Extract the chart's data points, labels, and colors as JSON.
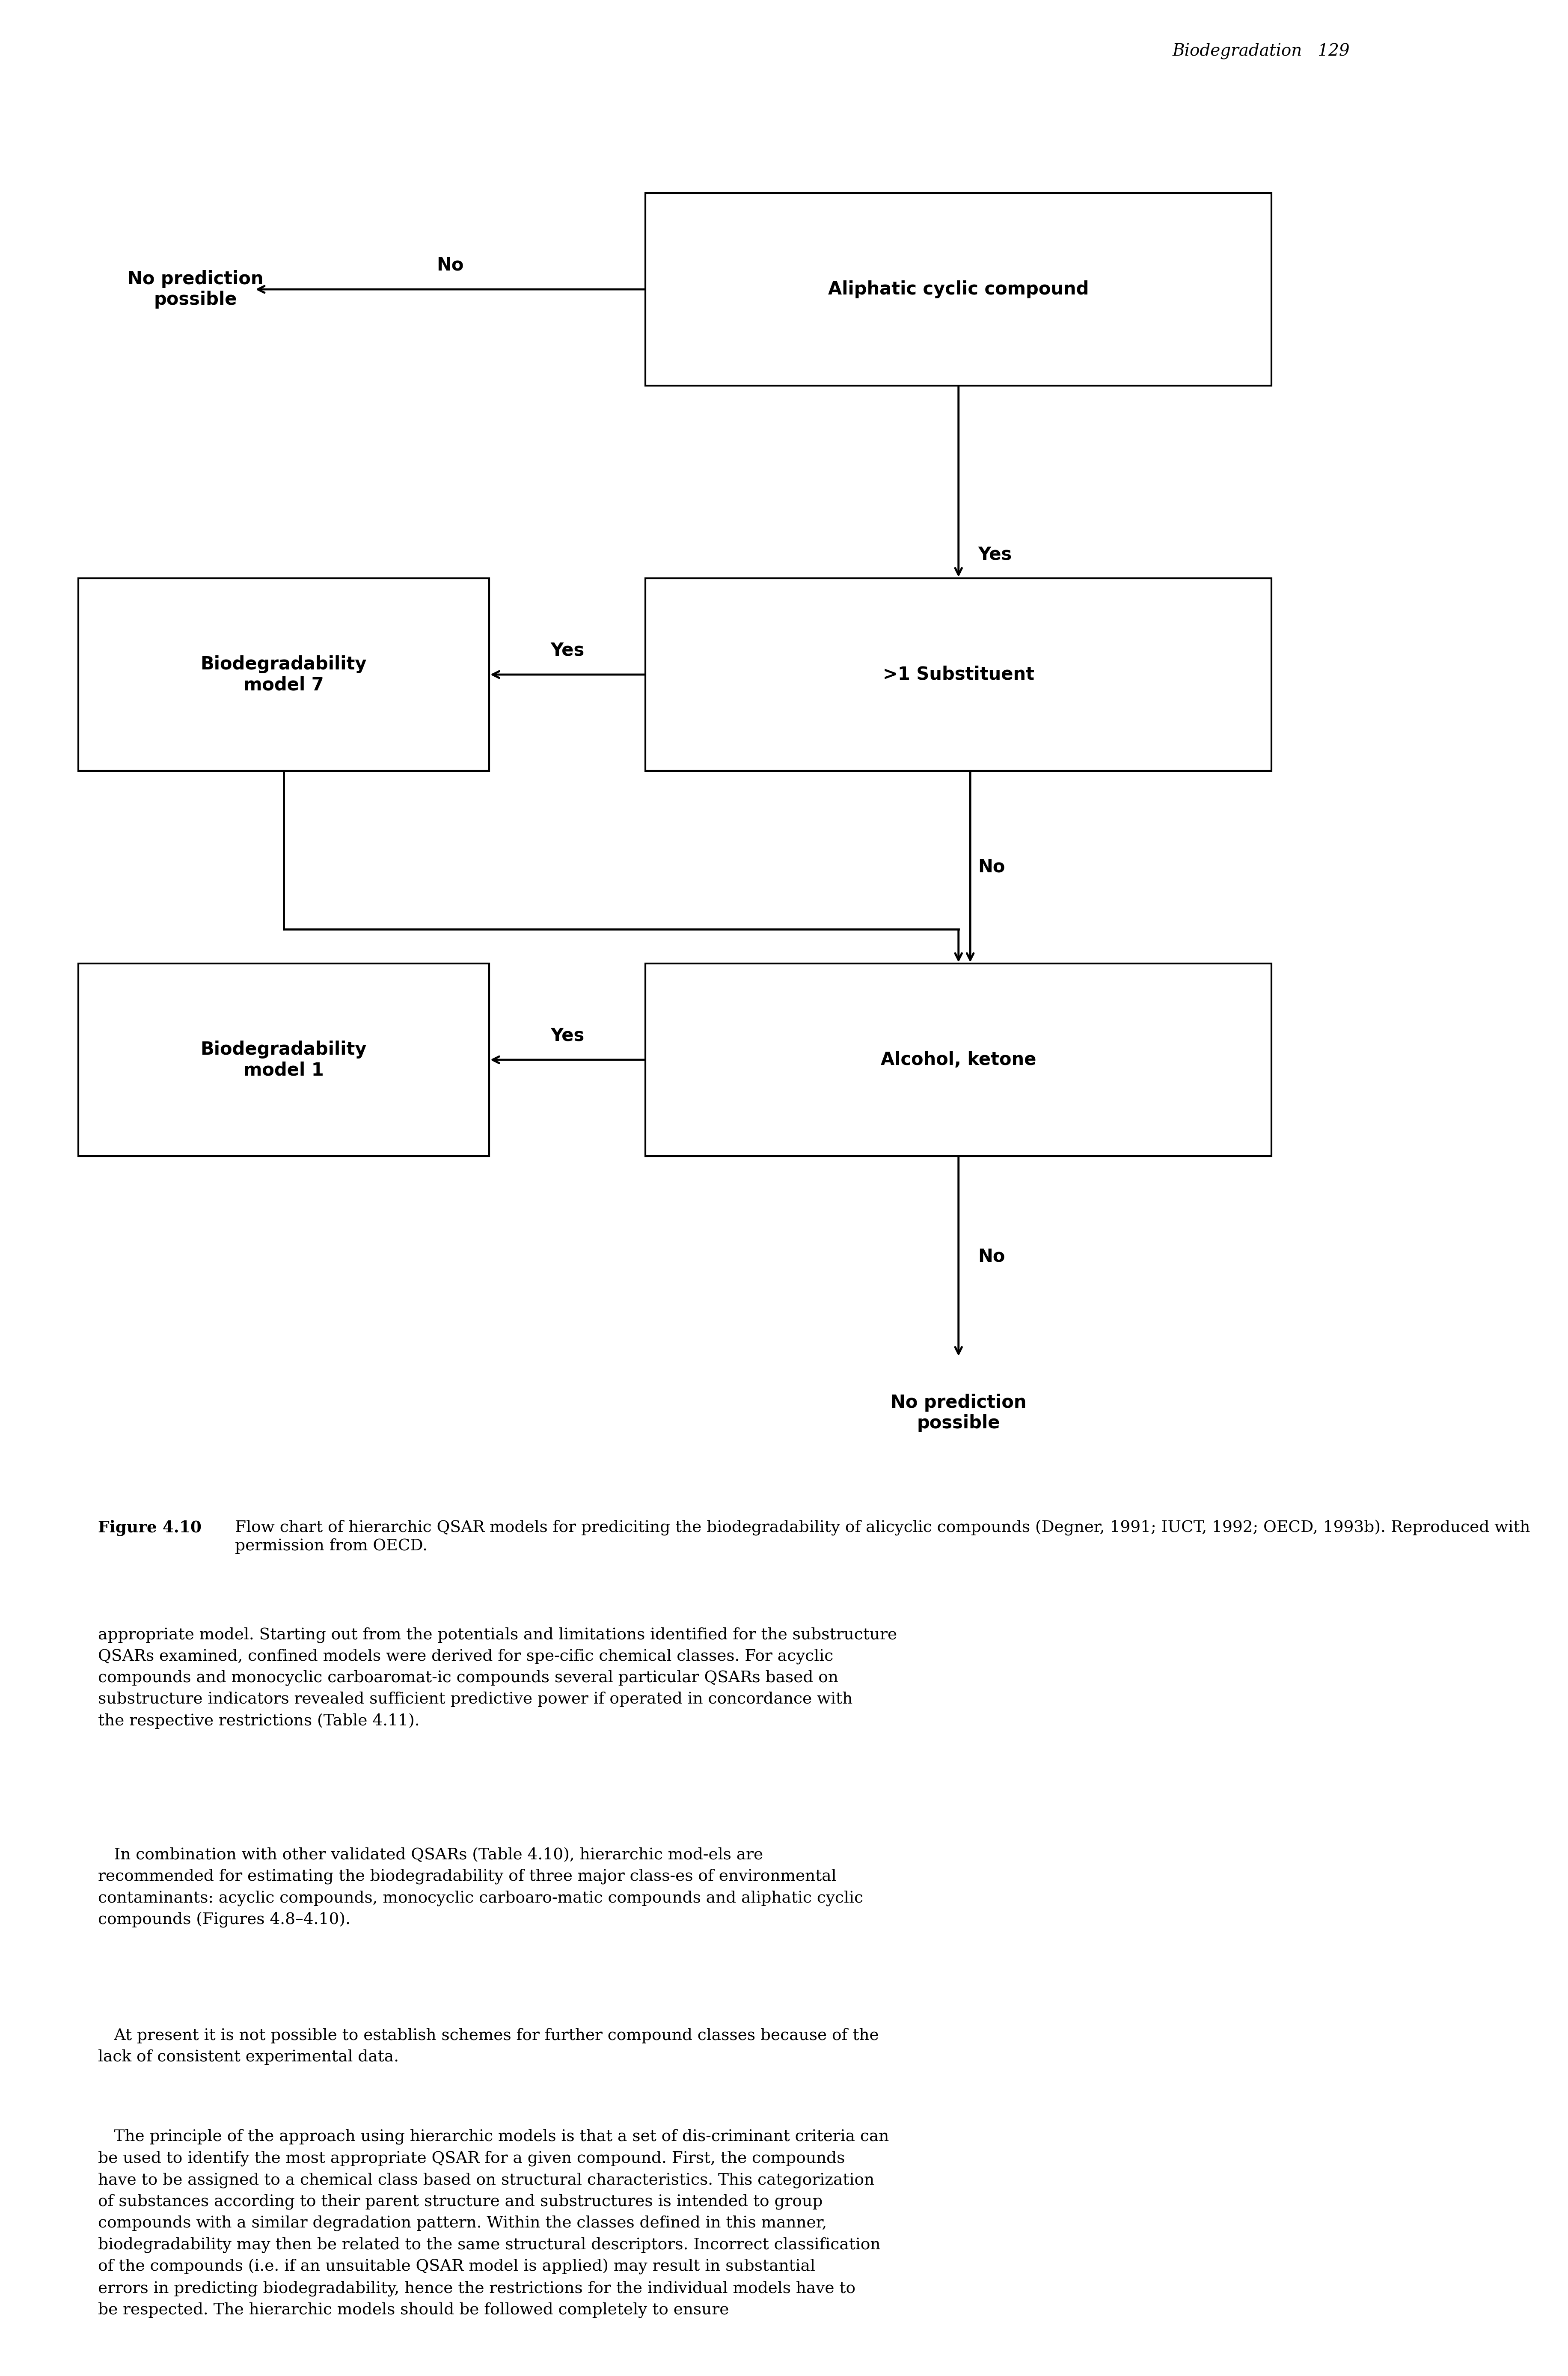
{
  "page_header_italic": "Biodegradation",
  "page_number": "129",
  "figure_label": "Figure 4.10",
  "figure_caption": "Flow chart of hierarchic QSAR models for prediciting the biodegradability of alicyclic compounds (Degner, 1991; IUCT, 1992; OECD, 1993b). Reproduced with permission from OECD.",
  "body_text": [
    "appropriate model. Starting out from the potentials and limitations identified for the substructure QSARs examined, confined models were derived for spe-cific chemical classes. For acyclic compounds and monocyclic carboaromat-ic compounds several particular QSARs based on substructure indicators revealed sufficient predictive power if operated in concordance with the respective restrictions (Table 4.11).",
    "In combination with other validated QSARs (Table 4.10), hierarchic mod-els are recommended for estimating the biodegradability of three major class-es of environmental contaminants: acyclic compounds, monocyclic carboaro-matic compounds and aliphatic cyclic compounds (Figures 4.8–4.10).",
    "At present it is not possible to establish schemes for further compound classes because of the lack of consistent experimental data.",
    "The principle of the approach using hierarchic models is that a set of dis-criminant criteria can be used to identify the most appropriate QSAR for a given compound. First, the compounds have to be assigned to a chemical class based on structural characteristics. This categorization of substances according to their parent structure and substructures is intended to group compounds with a similar degradation pattern. Within the classes defined in this manner, biodegradability may then be related to the same structural descriptors. Incorrect classification of the compounds (i.e. if an unsuitable QSAR model is applied) may result in substantial errors in predicting biodegradability, hence the restrictions for the individual models have to be respected. The hierarchic models should be followed completely to ensure"
  ],
  "background_color": "#ffffff",
  "box_color": "#ffffff",
  "box_edge_color": "#000000",
  "arrow_color": "#000000",
  "text_color": "#000000"
}
